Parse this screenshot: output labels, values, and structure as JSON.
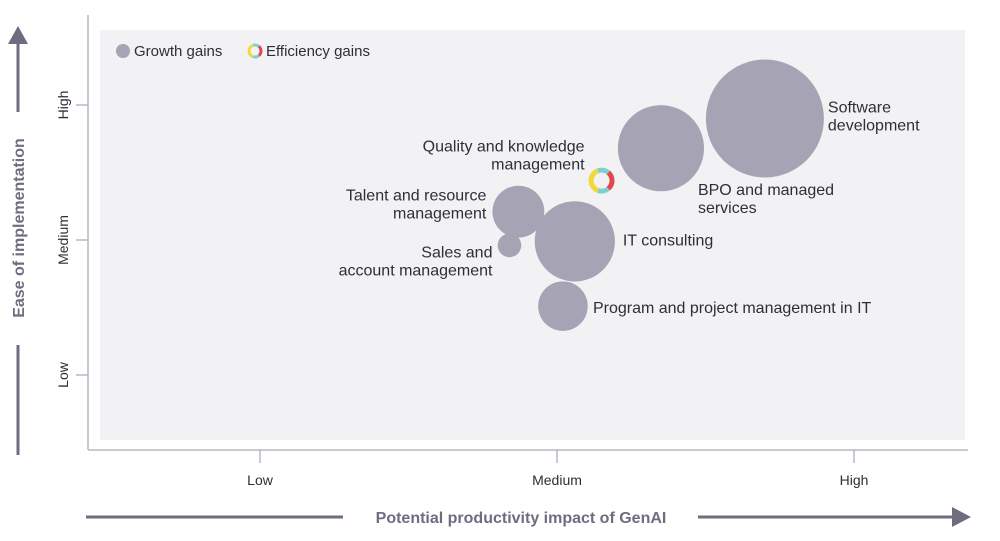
{
  "chart_data": {
    "type": "scatter",
    "subtype": "bubble",
    "xlabel": "Potential productivity impact of GenAI",
    "ylabel": "Ease of implementation",
    "x_ticks": [
      {
        "value": 1,
        "label": "Low"
      },
      {
        "value": 2,
        "label": "Medium"
      },
      {
        "value": 3,
        "label": "High"
      }
    ],
    "y_ticks": [
      {
        "value": 1,
        "label": "Low"
      },
      {
        "value": 2,
        "label": "Medium"
      },
      {
        "value": 3,
        "label": "High"
      }
    ],
    "xlim": [
      0.44,
      3.4
    ],
    "ylim": [
      0.45,
      3.5
    ],
    "legend": {
      "placement": "top-left",
      "entries": [
        {
          "label": "Growth gains",
          "color": "#a6a4b4"
        },
        {
          "label": "Efficiency gains",
          "colors": [
            "#f0da3a",
            "#7fcfcf",
            "#e0484c"
          ]
        }
      ]
    },
    "points": [
      {
        "label": [
          "Software",
          "development"
        ],
        "x": 2.7,
        "y": 2.9,
        "size": 100,
        "series": "Growth gains"
      },
      {
        "label": [
          "BPO and managed",
          "services"
        ],
        "x": 2.35,
        "y": 2.68,
        "size": 73,
        "series": "Growth gains"
      },
      {
        "label": [
          "Quality and knowledge",
          "management"
        ],
        "x": 2.15,
        "y": 2.44,
        "size": 22,
        "series": "Efficiency gains"
      },
      {
        "label": [
          "Talent and resource",
          "management"
        ],
        "x": 1.87,
        "y": 2.21,
        "size": 44,
        "series": "Growth gains"
      },
      {
        "label": [
          "Sales and",
          "account management"
        ],
        "x": 1.84,
        "y": 1.96,
        "size": 20,
        "series": "Growth gains"
      },
      {
        "label": [
          "IT consulting"
        ],
        "x": 2.06,
        "y": 1.99,
        "size": 68,
        "series": "Growth gains"
      },
      {
        "label": [
          "Program and project management in IT"
        ],
        "x": 2.02,
        "y": 1.51,
        "size": 42,
        "series": "Growth gains"
      }
    ]
  }
}
